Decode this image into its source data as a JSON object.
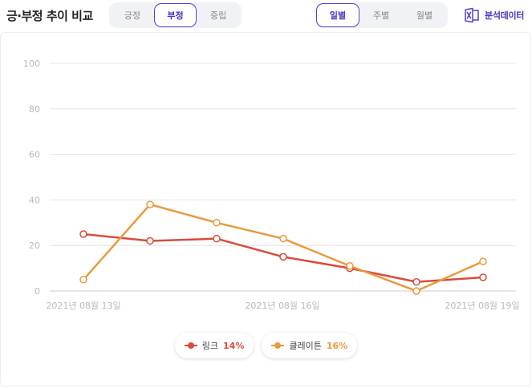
{
  "header": {
    "title": "긍·부정 추이 비교",
    "sentiment_tabs": [
      {
        "label": "긍정",
        "active": false
      },
      {
        "label": "부정",
        "active": true
      },
      {
        "label": "중립",
        "active": false
      }
    ],
    "period_tabs": [
      {
        "label": "일별",
        "active": true
      },
      {
        "label": "주별",
        "active": false
      },
      {
        "label": "월별",
        "active": false
      }
    ],
    "export_label": "분석데이터",
    "export_icon": "excel-icon"
  },
  "colors": {
    "accent": "#4a34c4",
    "series_link": "#d94b3c",
    "series_climate": "#e89a3c",
    "grid": "#e4e4e4",
    "tick": "#b9b9b9"
  },
  "chart_data": {
    "type": "line",
    "x": [
      "2021-08-13",
      "2021-08-14",
      "2021-08-15",
      "2021-08-16",
      "2021-08-17",
      "2021-08-18",
      "2021-08-19"
    ],
    "x_tick_labels": [
      "2021년 08월 13일",
      "2021년 08월 16일",
      "2021년 08월 19일"
    ],
    "y_ticks": [
      "0",
      "20",
      "40",
      "60",
      "80",
      "100"
    ],
    "ylim": [
      0,
      100
    ],
    "grid": true,
    "legend_position": "bottom-center",
    "series": [
      {
        "name": "링크",
        "percent": "14%",
        "color": "#d94b3c",
        "values": [
          25,
          22,
          23,
          15,
          10,
          4,
          6
        ]
      },
      {
        "name": "클레이튼",
        "percent": "16%",
        "color": "#e89a3c",
        "values": [
          5,
          38,
          30,
          23,
          11,
          0,
          13
        ]
      }
    ]
  }
}
